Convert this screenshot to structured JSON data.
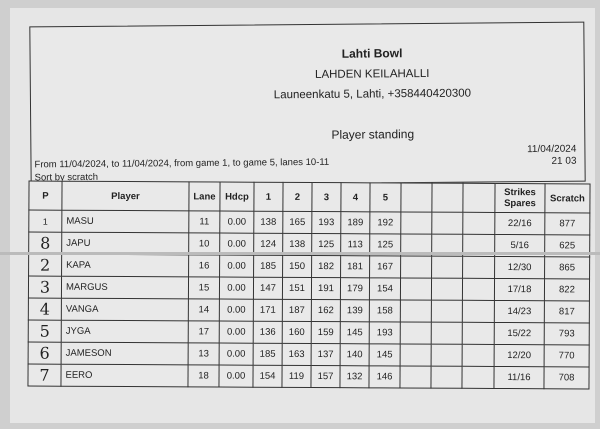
{
  "header": {
    "title": "Lahti Bowl",
    "subtitle": "LAHDEN KEILAHALLI",
    "address": "Launeenkatu 5, Lahti, +358440420300",
    "report_title": "Player standing",
    "range": "From 11/04/2024, to 11/04/2024, from game 1, to game 5, lanes 10-11",
    "sort": "Sort by scratch",
    "date": "11/04/2024",
    "time": "21 03"
  },
  "table": {
    "columns": [
      "P",
      "Player",
      "Lane",
      "Hdcp",
      "1",
      "2",
      "3",
      "4",
      "5",
      "",
      "",
      "",
      "Strikes Spares",
      "Scratch"
    ],
    "rows": [
      {
        "p": "1",
        "handwritten": false,
        "player": "MASU",
        "lane": "11",
        "hdcp": "0.00",
        "games": [
          "138",
          "165",
          "193",
          "189",
          "192"
        ],
        "ss": "22/16",
        "scratch": "877"
      },
      {
        "p": "8",
        "handwritten": true,
        "player": "JAPU",
        "lane": "10",
        "hdcp": "0.00",
        "games": [
          "124",
          "138",
          "125",
          "113",
          "125"
        ],
        "ss": "5/16",
        "scratch": "625"
      },
      {
        "p": "2",
        "handwritten": true,
        "player": "KAPA",
        "lane": "16",
        "hdcp": "0.00",
        "games": [
          "185",
          "150",
          "182",
          "181",
          "167"
        ],
        "ss": "12/30",
        "scratch": "865"
      },
      {
        "p": "3",
        "handwritten": true,
        "player": "MARGUS",
        "lane": "15",
        "hdcp": "0.00",
        "games": [
          "147",
          "151",
          "191",
          "179",
          "154"
        ],
        "ss": "17/18",
        "scratch": "822"
      },
      {
        "p": "4",
        "handwritten": true,
        "player": "VANGA",
        "lane": "14",
        "hdcp": "0.00",
        "games": [
          "171",
          "187",
          "162",
          "139",
          "158"
        ],
        "ss": "14/23",
        "scratch": "817"
      },
      {
        "p": "5",
        "handwritten": true,
        "player": "JYGA",
        "lane": "17",
        "hdcp": "0.00",
        "games": [
          "136",
          "160",
          "159",
          "145",
          "193"
        ],
        "ss": "15/22",
        "scratch": "793"
      },
      {
        "p": "6",
        "handwritten": true,
        "player": "JAMESON",
        "lane": "13",
        "hdcp": "0.00",
        "games": [
          "185",
          "163",
          "137",
          "140",
          "145"
        ],
        "ss": "12/20",
        "scratch": "770"
      },
      {
        "p": "7",
        "handwritten": true,
        "player": "EERO",
        "lane": "18",
        "hdcp": "0.00",
        "games": [
          "154",
          "119",
          "157",
          "132",
          "146"
        ],
        "ss": "11/16",
        "scratch": "708"
      }
    ]
  }
}
